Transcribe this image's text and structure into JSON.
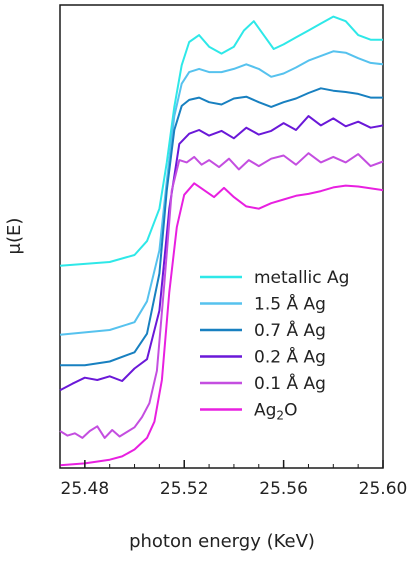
{
  "chart_data": {
    "type": "line",
    "title": "",
    "xlabel": "photon energy (KeV)",
    "ylabel": "μ(E)",
    "xlim": [
      25.47,
      25.6
    ],
    "xticks": [
      25.48,
      25.52,
      25.56,
      25.6
    ],
    "xtick_labels": [
      "25.48",
      "25.52",
      "25.56",
      "25.60"
    ],
    "ylim": [
      0,
      1
    ],
    "yticks_shown": false,
    "grid": false,
    "legend_position": "lower-right",
    "series": [
      {
        "name": "metallic Ag",
        "color": "#2ee8e8",
        "x": [
          25.47,
          25.49,
          25.5,
          25.505,
          25.51,
          25.513,
          25.516,
          25.519,
          25.522,
          25.526,
          25.53,
          25.535,
          25.54,
          25.544,
          25.548,
          25.552,
          25.556,
          25.56,
          25.565,
          25.57,
          25.575,
          25.58,
          25.585,
          25.59,
          25.595,
          25.6
        ],
        "y": [
          0.437,
          0.445,
          0.46,
          0.49,
          0.56,
          0.66,
          0.78,
          0.87,
          0.92,
          0.935,
          0.91,
          0.895,
          0.91,
          0.945,
          0.965,
          0.935,
          0.905,
          0.915,
          0.93,
          0.945,
          0.96,
          0.975,
          0.965,
          0.935,
          0.925,
          0.925
        ]
      },
      {
        "name": "1.5 Å Ag",
        "color": "#56c2ee",
        "x": [
          25.47,
          25.49,
          25.5,
          25.505,
          25.51,
          25.513,
          25.516,
          25.519,
          25.522,
          25.526,
          25.53,
          25.535,
          25.54,
          25.545,
          25.55,
          25.555,
          25.56,
          25.565,
          25.57,
          25.575,
          25.58,
          25.585,
          25.59,
          25.595,
          25.6
        ],
        "y": [
          0.288,
          0.298,
          0.315,
          0.36,
          0.47,
          0.62,
          0.76,
          0.83,
          0.855,
          0.862,
          0.855,
          0.855,
          0.862,
          0.872,
          0.862,
          0.845,
          0.852,
          0.865,
          0.88,
          0.89,
          0.9,
          0.897,
          0.885,
          0.875,
          0.872
        ]
      },
      {
        "name": "0.7 Å Ag",
        "color": "#1880c0",
        "x": [
          25.47,
          25.48,
          25.49,
          25.5,
          25.505,
          25.51,
          25.513,
          25.516,
          25.519,
          25.522,
          25.526,
          25.53,
          25.535,
          25.54,
          25.545,
          25.55,
          25.555,
          25.56,
          25.565,
          25.57,
          25.575,
          25.58,
          25.585,
          25.59,
          25.595,
          25.6
        ],
        "y": [
          0.222,
          0.222,
          0.23,
          0.25,
          0.29,
          0.42,
          0.6,
          0.73,
          0.782,
          0.795,
          0.8,
          0.79,
          0.785,
          0.798,
          0.802,
          0.79,
          0.78,
          0.79,
          0.798,
          0.81,
          0.82,
          0.815,
          0.812,
          0.808,
          0.8,
          0.8
        ]
      },
      {
        "name": "0.2 Å Ag",
        "color": "#6a18d8",
        "x": [
          25.47,
          25.475,
          25.48,
          25.485,
          25.49,
          25.495,
          25.5,
          25.505,
          25.51,
          25.514,
          25.518,
          25.522,
          25.526,
          25.53,
          25.535,
          25.54,
          25.545,
          25.55,
          25.555,
          25.56,
          25.565,
          25.57,
          25.575,
          25.58,
          25.585,
          25.59,
          25.595,
          25.6
        ],
        "y": [
          0.168,
          0.182,
          0.195,
          0.19,
          0.198,
          0.188,
          0.215,
          0.235,
          0.34,
          0.56,
          0.7,
          0.722,
          0.73,
          0.718,
          0.728,
          0.712,
          0.735,
          0.72,
          0.728,
          0.745,
          0.73,
          0.76,
          0.74,
          0.755,
          0.738,
          0.748,
          0.735,
          0.74
        ]
      },
      {
        "name": "0.1 Å Ag",
        "color": "#c44ee0",
        "x": [
          25.47,
          25.473,
          25.476,
          25.479,
          25.482,
          25.485,
          25.488,
          25.491,
          25.494,
          25.497,
          25.5,
          25.503,
          25.506,
          25.509,
          25.512,
          25.515,
          25.518,
          25.521,
          25.524,
          25.527,
          25.53,
          25.534,
          25.538,
          25.542,
          25.546,
          25.55,
          25.555,
          25.56,
          25.565,
          25.57,
          25.575,
          25.58,
          25.585,
          25.59,
          25.595,
          25.6
        ],
        "y": [
          0.08,
          0.07,
          0.075,
          0.065,
          0.08,
          0.09,
          0.065,
          0.082,
          0.068,
          0.078,
          0.088,
          0.11,
          0.14,
          0.21,
          0.4,
          0.6,
          0.665,
          0.66,
          0.672,
          0.655,
          0.665,
          0.65,
          0.668,
          0.645,
          0.665,
          0.652,
          0.668,
          0.675,
          0.655,
          0.68,
          0.66,
          0.672,
          0.66,
          0.678,
          0.652,
          0.662
        ]
      },
      {
        "name": "Ag₂O",
        "color": "#e820e0",
        "x": [
          25.47,
          25.48,
          25.49,
          25.495,
          25.5,
          25.505,
          25.508,
          25.511,
          25.514,
          25.517,
          25.52,
          25.524,
          25.528,
          25.532,
          25.536,
          25.54,
          25.545,
          25.55,
          25.555,
          25.56,
          25.565,
          25.57,
          25.575,
          25.58,
          25.585,
          25.59,
          25.6
        ],
        "y": [
          0.006,
          0.01,
          0.018,
          0.025,
          0.04,
          0.065,
          0.1,
          0.19,
          0.38,
          0.52,
          0.59,
          0.615,
          0.6,
          0.585,
          0.605,
          0.585,
          0.565,
          0.56,
          0.572,
          0.58,
          0.588,
          0.592,
          0.598,
          0.606,
          0.61,
          0.608,
          0.6
        ]
      }
    ]
  },
  "legend": {
    "items": [
      {
        "name": "metallic Ag",
        "color": "#2ee8e8"
      },
      {
        "name": "1.5 Å Ag",
        "color": "#56c2ee"
      },
      {
        "name": "0.7 Å Ag",
        "color": "#1880c0"
      },
      {
        "name": "0.2 Å Ag",
        "color": "#6a18d8"
      },
      {
        "name": "0.1 Å Ag",
        "color": "#c44ee0"
      },
      {
        "name": "Ag",
        "subscript": "2",
        "suffix": "O",
        "color": "#e820e0"
      }
    ]
  }
}
